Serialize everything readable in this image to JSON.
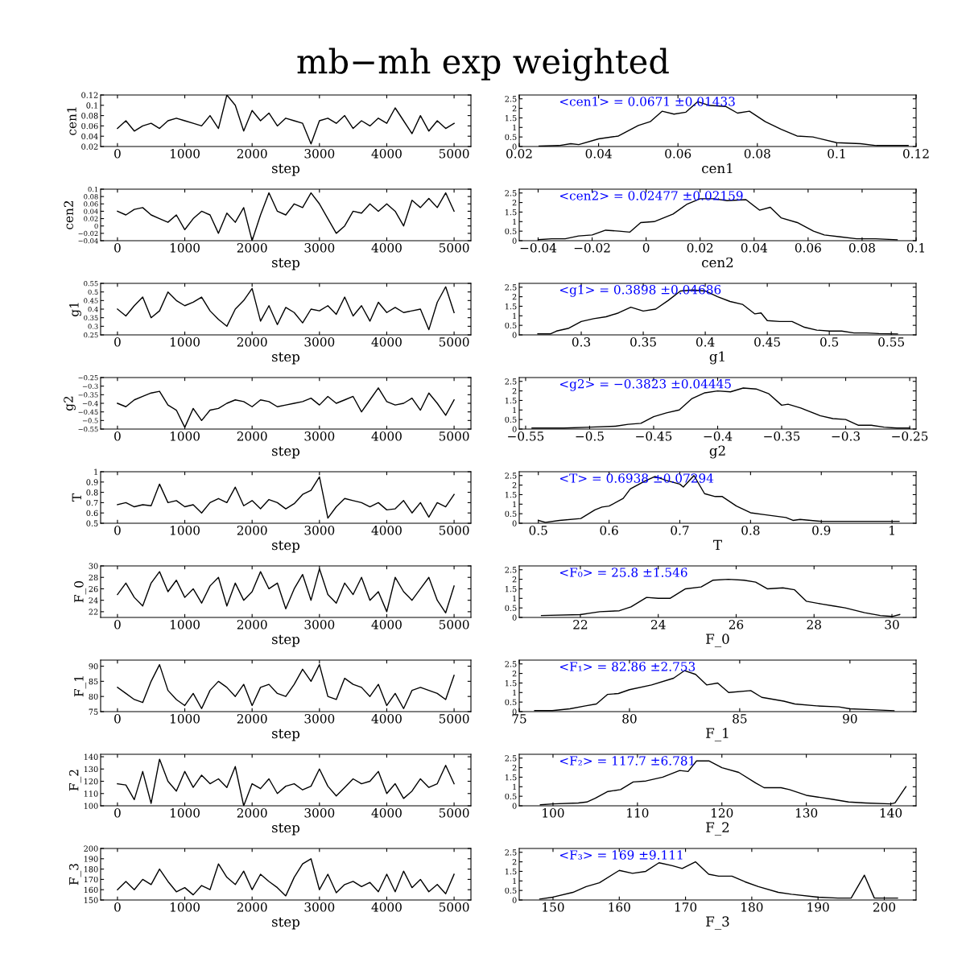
{
  "chart_data": [
    {
      "type": "line",
      "title": "mb−mh exp weighted",
      "xlabel": "step",
      "ylabel": "cen1",
      "x": [
        0,
        125,
        250,
        375,
        500,
        625,
        750,
        875,
        1000,
        1125,
        1250,
        1375,
        1500,
        1625,
        1750,
        1875,
        2000,
        2125,
        2250,
        2375,
        2500,
        2625,
        2750,
        2875,
        3000,
        3125,
        3250,
        3375,
        3500,
        3625,
        3750,
        3875,
        4000,
        4125,
        4250,
        4375,
        4500,
        4625,
        4750,
        4875,
        5000
      ],
      "series": [
        {
          "color": "#000000",
          "values": [
            0.055,
            0.07,
            0.05,
            0.06,
            0.065,
            0.055,
            0.07,
            0.075,
            0.07,
            0.065,
            0.06,
            0.08,
            0.055,
            0.12,
            0.1,
            0.05,
            0.09,
            0.07,
            0.085,
            0.06,
            0.075,
            0.07,
            0.065,
            0.025,
            0.07,
            0.075,
            0.065,
            0.08,
            0.055,
            0.07,
            0.06,
            0.075,
            0.065,
            0.095,
            0.07,
            0.045,
            0.08,
            0.05,
            0.07,
            0.055,
            0.065
          ]
        }
      ],
      "xlim": [
        -250,
        5250
      ],
      "xticks": [
        0,
        1000,
        2000,
        3000,
        4000,
        5000
      ],
      "ylim": [
        0.02,
        0.12
      ],
      "yticks": [
        0.02,
        0.04,
        0.06,
        0.08,
        0.1,
        0.12
      ]
    },
    {
      "type": "line",
      "xlabel": "cen1",
      "annotations": [
        "<cen1> = 0.0671 ±0.01433"
      ],
      "x": [
        0.025,
        0.03,
        0.033,
        0.035,
        0.04,
        0.045,
        0.05,
        0.053,
        0.056,
        0.059,
        0.062,
        0.065,
        0.068,
        0.072,
        0.075,
        0.078,
        0.082,
        0.086,
        0.09,
        0.094,
        0.1,
        0.106,
        0.11,
        0.118
      ],
      "series": [
        {
          "color": "#000000",
          "values": [
            0.02,
            0.05,
            0.15,
            0.1,
            0.4,
            0.55,
            1.1,
            1.3,
            1.85,
            1.7,
            1.8,
            2.35,
            2.15,
            2.1,
            1.75,
            1.85,
            1.3,
            0.9,
            0.55,
            0.5,
            0.2,
            0.15,
            0.05,
            0.05
          ]
        }
      ],
      "xlim": [
        0.02,
        0.12
      ],
      "xticks": [
        0.02,
        0.04,
        0.06,
        0.08,
        0.1,
        0.12
      ],
      "ylim": [
        0,
        2.7
      ],
      "yticks": [
        0,
        0.5,
        1,
        1.5,
        2,
        2.5
      ]
    },
    {
      "type": "line",
      "xlabel": "step",
      "ylabel": "cen2",
      "x": [
        0,
        125,
        250,
        375,
        500,
        625,
        750,
        875,
        1000,
        1125,
        1250,
        1375,
        1500,
        1625,
        1750,
        1875,
        2000,
        2125,
        2250,
        2375,
        2500,
        2625,
        2750,
        2875,
        3000,
        3125,
        3250,
        3375,
        3500,
        3625,
        3750,
        3875,
        4000,
        4125,
        4250,
        4375,
        4500,
        4625,
        4750,
        4875,
        5000
      ],
      "series": [
        {
          "color": "#000000",
          "values": [
            0.04,
            0.03,
            0.045,
            0.05,
            0.03,
            0.02,
            0.01,
            0.03,
            -0.01,
            0.02,
            0.04,
            0.03,
            -0.02,
            0.035,
            0.01,
            0.05,
            -0.04,
            0.03,
            0.09,
            0.04,
            0.03,
            0.06,
            0.05,
            0.09,
            0.06,
            0.02,
            -0.02,
            0.0,
            0.04,
            0.035,
            0.06,
            0.04,
            0.06,
            0.04,
            0.0,
            0.07,
            0.05,
            0.075,
            0.05,
            0.09,
            0.04
          ]
        }
      ],
      "xlim": [
        -250,
        5250
      ],
      "xticks": [
        0,
        1000,
        2000,
        3000,
        4000,
        5000
      ],
      "ylim": [
        -0.04,
        0.1
      ],
      "yticks": [
        {
          "value": -0.04,
          "label": "−0.04"
        },
        {
          "value": -0.02,
          "label": "−0.02"
        },
        0,
        0.02,
        0.04,
        0.06,
        0.08,
        0.1
      ]
    },
    {
      "type": "line",
      "xlabel": "cen2",
      "annotations": [
        "<cen2> = 0.02477 ±0.02159"
      ],
      "x": [
        -0.04,
        -0.035,
        -0.03,
        -0.025,
        -0.02,
        -0.015,
        -0.01,
        -0.006,
        -0.002,
        0.003,
        0.01,
        0.015,
        0.02,
        0.025,
        0.03,
        0.037,
        0.042,
        0.046,
        0.05,
        0.056,
        0.062,
        0.066,
        0.072,
        0.078,
        0.085,
        0.093
      ],
      "series": [
        {
          "color": "#000000",
          "values": [
            0.05,
            0.1,
            0.1,
            0.25,
            0.3,
            0.55,
            0.5,
            0.45,
            0.95,
            1.0,
            1.4,
            1.9,
            2.2,
            2.2,
            2.1,
            2.15,
            1.6,
            1.75,
            1.2,
            0.95,
            0.5,
            0.3,
            0.2,
            0.1,
            0.1,
            0.05
          ]
        }
      ],
      "xlim": [
        -0.047,
        0.1
      ],
      "xticks": [
        {
          "value": -0.04,
          "label": "−0.04"
        },
        {
          "value": -0.02,
          "label": "−0.02"
        },
        0,
        0.02,
        0.04,
        0.06,
        0.08,
        0.1
      ],
      "ylim": [
        0,
        2.7
      ],
      "yticks": [
        0,
        0.5,
        1,
        1.5,
        2,
        2.5
      ]
    },
    {
      "type": "line",
      "xlabel": "step",
      "ylabel": "g1",
      "x": [
        0,
        125,
        250,
        375,
        500,
        625,
        750,
        875,
        1000,
        1125,
        1250,
        1375,
        1500,
        1625,
        1750,
        1875,
        2000,
        2125,
        2250,
        2375,
        2500,
        2625,
        2750,
        2875,
        3000,
        3125,
        3250,
        3375,
        3500,
        3625,
        3750,
        3875,
        4000,
        4125,
        4250,
        4375,
        4500,
        4625,
        4750,
        4875,
        5000
      ],
      "series": [
        {
          "color": "#000000",
          "values": [
            0.4,
            0.36,
            0.42,
            0.47,
            0.35,
            0.39,
            0.5,
            0.45,
            0.42,
            0.44,
            0.47,
            0.39,
            0.34,
            0.3,
            0.4,
            0.45,
            0.52,
            0.33,
            0.42,
            0.31,
            0.41,
            0.38,
            0.32,
            0.4,
            0.39,
            0.42,
            0.37,
            0.47,
            0.36,
            0.42,
            0.33,
            0.44,
            0.38,
            0.41,
            0.38,
            0.39,
            0.4,
            0.28,
            0.44,
            0.53,
            0.38
          ]
        }
      ],
      "xlim": [
        -250,
        5250
      ],
      "xticks": [
        0,
        1000,
        2000,
        3000,
        4000,
        5000
      ],
      "ylim": [
        0.25,
        0.55
      ],
      "yticks": [
        0.25,
        0.3,
        0.35,
        0.4,
        0.45,
        0.5,
        0.55
      ]
    },
    {
      "type": "line",
      "xlabel": "g1",
      "annotations": [
        "<g1> = 0.3898 ±0.04686"
      ],
      "x": [
        0.265,
        0.275,
        0.28,
        0.29,
        0.3,
        0.31,
        0.32,
        0.33,
        0.34,
        0.35,
        0.36,
        0.37,
        0.38,
        0.39,
        0.4,
        0.41,
        0.42,
        0.43,
        0.44,
        0.445,
        0.45,
        0.46,
        0.47,
        0.48,
        0.49,
        0.5,
        0.51,
        0.52,
        0.53,
        0.54,
        0.555
      ],
      "series": [
        {
          "color": "#000000",
          "values": [
            0.05,
            0.05,
            0.2,
            0.35,
            0.7,
            0.85,
            0.95,
            1.15,
            1.45,
            1.25,
            1.35,
            1.8,
            2.3,
            2.35,
            2.3,
            2.0,
            1.75,
            1.6,
            1.1,
            1.15,
            0.75,
            0.7,
            0.7,
            0.4,
            0.25,
            0.2,
            0.2,
            0.1,
            0.1,
            0.07,
            0.05
          ]
        }
      ],
      "xlim": [
        0.25,
        0.57
      ],
      "xticks": [
        0.3,
        0.35,
        0.4,
        0.45,
        0.5,
        0.55
      ],
      "ylim": [
        0,
        2.7
      ],
      "yticks": [
        0,
        0.5,
        1,
        1.5,
        2,
        2.5
      ]
    },
    {
      "type": "line",
      "xlabel": "step",
      "ylabel": "g2",
      "x": [
        0,
        125,
        250,
        375,
        500,
        625,
        750,
        875,
        1000,
        1125,
        1250,
        1375,
        1500,
        1625,
        1750,
        1875,
        2000,
        2125,
        2250,
        2375,
        2500,
        2625,
        2750,
        2875,
        3000,
        3125,
        3250,
        3375,
        3500,
        3625,
        3750,
        3875,
        4000,
        4125,
        4250,
        4375,
        4500,
        4625,
        4750,
        4875,
        5000
      ],
      "series": [
        {
          "color": "#000000",
          "values": [
            -0.4,
            -0.42,
            -0.38,
            -0.36,
            -0.34,
            -0.33,
            -0.41,
            -0.44,
            -0.54,
            -0.43,
            -0.5,
            -0.44,
            -0.43,
            -0.4,
            -0.38,
            -0.39,
            -0.42,
            -0.38,
            -0.39,
            -0.42,
            -0.41,
            -0.4,
            -0.39,
            -0.37,
            -0.41,
            -0.36,
            -0.4,
            -0.38,
            -0.36,
            -0.45,
            -0.38,
            -0.31,
            -0.39,
            -0.41,
            -0.4,
            -0.37,
            -0.44,
            -0.34,
            -0.4,
            -0.47,
            -0.38
          ]
        }
      ],
      "xlim": [
        -250,
        5250
      ],
      "xticks": [
        0,
        1000,
        2000,
        3000,
        4000,
        5000
      ],
      "ylim": [
        -0.55,
        -0.25
      ],
      "yticks": [
        {
          "value": -0.55,
          "label": "−0.55"
        },
        {
          "value": -0.5,
          "label": "−0.5"
        },
        {
          "value": -0.45,
          "label": "−0.45"
        },
        {
          "value": -0.4,
          "label": "−0.4"
        },
        {
          "value": -0.35,
          "label": "−0.35"
        },
        {
          "value": -0.3,
          "label": "−0.3"
        },
        {
          "value": -0.25,
          "label": "−0.25"
        }
      ]
    },
    {
      "type": "line",
      "xlabel": "g2",
      "annotations": [
        "<g2> = −0.3823 ±0.04445"
      ],
      "x": [
        -0.545,
        -0.52,
        -0.5,
        -0.48,
        -0.47,
        -0.46,
        -0.45,
        -0.44,
        -0.43,
        -0.42,
        -0.41,
        -0.4,
        -0.39,
        -0.38,
        -0.37,
        -0.36,
        -0.35,
        -0.345,
        -0.335,
        -0.32,
        -0.31,
        -0.3,
        -0.29,
        -0.28,
        -0.27,
        -0.26,
        -0.25
      ],
      "series": [
        {
          "color": "#000000",
          "values": [
            0.05,
            0.05,
            0.1,
            0.15,
            0.25,
            0.3,
            0.65,
            0.85,
            1.0,
            1.6,
            1.9,
            2.0,
            1.95,
            2.15,
            2.1,
            1.85,
            1.25,
            1.3,
            1.1,
            0.7,
            0.55,
            0.5,
            0.2,
            0.2,
            0.1,
            0.05,
            0.05
          ]
        }
      ],
      "xlim": [
        -0.555,
        -0.245
      ],
      "xticks": [
        {
          "value": -0.55,
          "label": "−0.55"
        },
        {
          "value": -0.5,
          "label": "−0.5"
        },
        {
          "value": -0.45,
          "label": "−0.45"
        },
        {
          "value": -0.4,
          "label": "−0.4"
        },
        {
          "value": -0.35,
          "label": "−0.35"
        },
        {
          "value": -0.3,
          "label": "−0.3"
        },
        {
          "value": -0.25,
          "label": "−0.25"
        }
      ],
      "ylim": [
        0,
        2.7
      ],
      "yticks": [
        0,
        0.5,
        1,
        1.5,
        2,
        2.5
      ]
    },
    {
      "type": "line",
      "xlabel": "step",
      "ylabel": "T",
      "x": [
        0,
        125,
        250,
        375,
        500,
        625,
        750,
        875,
        1000,
        1125,
        1250,
        1375,
        1500,
        1625,
        1750,
        1875,
        2000,
        2125,
        2250,
        2375,
        2500,
        2625,
        2750,
        2875,
        3000,
        3125,
        3250,
        3375,
        3500,
        3625,
        3750,
        3875,
        4000,
        4125,
        4250,
        4375,
        4500,
        4625,
        4750,
        4875,
        5000
      ],
      "series": [
        {
          "color": "#000000",
          "values": [
            0.68,
            0.7,
            0.66,
            0.68,
            0.67,
            0.88,
            0.7,
            0.72,
            0.66,
            0.68,
            0.6,
            0.7,
            0.74,
            0.7,
            0.85,
            0.67,
            0.72,
            0.64,
            0.73,
            0.7,
            0.64,
            0.69,
            0.78,
            0.82,
            0.95,
            0.55,
            0.66,
            0.74,
            0.72,
            0.7,
            0.66,
            0.7,
            0.63,
            0.64,
            0.72,
            0.6,
            0.7,
            0.56,
            0.7,
            0.66,
            0.78
          ]
        }
      ],
      "xlim": [
        -250,
        5250
      ],
      "xticks": [
        0,
        1000,
        2000,
        3000,
        4000,
        5000
      ],
      "ylim": [
        0.5,
        1
      ],
      "yticks": [
        0.5,
        0.6,
        0.7,
        0.8,
        0.9,
        1
      ]
    },
    {
      "type": "line",
      "xlabel": "T",
      "annotations": [
        "<T> = 0.6938 ±0.07294"
      ],
      "x": [
        0.5,
        0.51,
        0.53,
        0.56,
        0.58,
        0.59,
        0.6,
        0.62,
        0.63,
        0.65,
        0.665,
        0.68,
        0.7,
        0.705,
        0.72,
        0.735,
        0.75,
        0.76,
        0.78,
        0.8,
        0.82,
        0.85,
        0.86,
        0.87,
        0.9,
        0.95,
        0.98,
        1.01
      ],
      "series": [
        {
          "color": "#000000",
          "values": [
            0.15,
            0.05,
            0.15,
            0.25,
            0.7,
            0.85,
            0.9,
            1.3,
            1.8,
            2.2,
            2.45,
            2.25,
            2.05,
            1.9,
            2.5,
            1.55,
            1.4,
            1.4,
            0.9,
            0.55,
            0.45,
            0.3,
            0.15,
            0.2,
            0.1,
            0.1,
            0.1,
            0.1
          ]
        }
      ],
      "xlim": [
        0.473,
        1.034
      ],
      "xticks": [
        0.5,
        0.6,
        0.7,
        0.8,
        0.9,
        1
      ],
      "ylim": [
        0,
        2.7
      ],
      "yticks": [
        0,
        0.5,
        1,
        1.5,
        2,
        2.5
      ]
    },
    {
      "type": "line",
      "xlabel": "step",
      "ylabel": "F_0",
      "x": [
        0,
        125,
        250,
        375,
        500,
        625,
        750,
        875,
        1000,
        1125,
        1250,
        1375,
        1500,
        1625,
        1750,
        1875,
        2000,
        2125,
        2250,
        2375,
        2500,
        2625,
        2750,
        2875,
        3000,
        3125,
        3250,
        3375,
        3500,
        3625,
        3750,
        3875,
        4000,
        4125,
        4250,
        4375,
        4500,
        4625,
        4750,
        4875,
        5000
      ],
      "series": [
        {
          "color": "#000000",
          "values": [
            25,
            27,
            24.5,
            23,
            27,
            29,
            25.5,
            27.5,
            24.5,
            26,
            23.5,
            26.5,
            28,
            23,
            27,
            24,
            25.5,
            29,
            26,
            27,
            22.5,
            26,
            28.5,
            24,
            29.5,
            25,
            23.5,
            27,
            25,
            28,
            24,
            25.5,
            22,
            28,
            25.5,
            24,
            26,
            28,
            24,
            21.8,
            26.5
          ]
        }
      ],
      "xlim": [
        -250,
        5250
      ],
      "xticks": [
        0,
        1000,
        2000,
        3000,
        4000,
        5000
      ],
      "ylim": [
        21,
        30
      ],
      "yticks": [
        22,
        24,
        26,
        28,
        30
      ]
    },
    {
      "type": "line",
      "xlabel": "F_0",
      "annotations": [
        "<F₀> = 25.8 ±1.546"
      ],
      "x": [
        21,
        22,
        22.5,
        23,
        23.3,
        23.7,
        24,
        24.3,
        24.7,
        25.1,
        25.4,
        25.8,
        26.2,
        26.5,
        26.8,
        27.2,
        27.5,
        27.8,
        28.2,
        28.5,
        28.8,
        29.3,
        29.7,
        30.0,
        30.2
      ],
      "series": [
        {
          "color": "#000000",
          "values": [
            0.1,
            0.15,
            0.3,
            0.35,
            0.55,
            1.05,
            1.0,
            1.0,
            1.5,
            1.6,
            1.95,
            2.0,
            1.95,
            1.85,
            1.5,
            1.55,
            1.45,
            0.85,
            0.7,
            0.6,
            0.5,
            0.25,
            0.1,
            0.05,
            0.15
          ]
        }
      ],
      "xlim": [
        20.43,
        30.62
      ],
      "xticks": [
        22,
        24,
        26,
        28,
        30
      ],
      "ylim": [
        0,
        2.7
      ],
      "yticks": [
        0,
        0.5,
        1,
        1.5,
        2,
        2.5
      ]
    },
    {
      "type": "line",
      "xlabel": "step",
      "ylabel": "F_1",
      "x": [
        0,
        125,
        250,
        375,
        500,
        625,
        750,
        875,
        1000,
        1125,
        1250,
        1375,
        1500,
        1625,
        1750,
        1875,
        2000,
        2125,
        2250,
        2375,
        2500,
        2625,
        2750,
        2875,
        3000,
        3125,
        3250,
        3375,
        3500,
        3625,
        3750,
        3875,
        4000,
        4125,
        4250,
        4375,
        4500,
        4625,
        4750,
        4875,
        5000
      ],
      "series": [
        {
          "color": "#000000",
          "values": [
            83,
            81,
            79,
            78,
            85,
            90.5,
            82,
            79,
            77,
            81,
            76,
            82,
            85,
            83,
            80,
            84,
            77,
            83,
            84,
            81,
            80,
            84,
            89,
            85,
            90.5,
            80,
            79,
            86,
            84,
            83,
            80,
            84,
            77,
            81,
            76,
            82,
            83,
            82,
            81,
            79,
            87
          ]
        }
      ],
      "xlim": [
        -250,
        5250
      ],
      "xticks": [
        0,
        1000,
        2000,
        3000,
        4000,
        5000
      ],
      "ylim": [
        75,
        92
      ],
      "yticks": [
        75,
        80,
        85,
        90
      ]
    },
    {
      "type": "line",
      "xlabel": "F_1",
      "annotations": [
        "<F₁> = 82.86 ±2.753"
      ],
      "x": [
        75.7,
        76.5,
        77.3,
        78,
        78.5,
        79,
        79.5,
        80,
        81,
        82,
        82.5,
        83,
        83.5,
        84,
        84.5,
        85.5,
        86,
        87,
        87.5,
        88.5,
        89.5,
        90,
        91,
        92
      ],
      "series": [
        {
          "color": "#000000",
          "values": [
            0.05,
            0.05,
            0.15,
            0.3,
            0.4,
            0.9,
            0.95,
            1.15,
            1.4,
            1.75,
            2.15,
            1.95,
            1.4,
            1.5,
            1.0,
            1.1,
            0.75,
            0.55,
            0.4,
            0.3,
            0.25,
            0.15,
            0.1,
            0.05
          ]
        }
      ],
      "xlim": [
        75,
        93
      ],
      "xticks": [
        75,
        80,
        85,
        90
      ],
      "ylim": [
        0,
        2.7
      ],
      "yticks": [
        0,
        0.5,
        1,
        1.5,
        2,
        2.5
      ]
    },
    {
      "type": "line",
      "xlabel": "step",
      "ylabel": "F_2",
      "x": [
        0,
        125,
        250,
        375,
        500,
        625,
        750,
        875,
        1000,
        1125,
        1250,
        1375,
        1500,
        1625,
        1750,
        1875,
        2000,
        2125,
        2250,
        2375,
        2500,
        2625,
        2750,
        2875,
        3000,
        3125,
        3250,
        3375,
        3500,
        3625,
        3750,
        3875,
        4000,
        4125,
        4250,
        4375,
        4500,
        4625,
        4750,
        4875,
        5000
      ],
      "series": [
        {
          "color": "#000000",
          "values": [
            118,
            117,
            105,
            128,
            102,
            138,
            120,
            112,
            128,
            115,
            125,
            118,
            122,
            115,
            132,
            100,
            118,
            114,
            122,
            110,
            116,
            118,
            113,
            116,
            130,
            116,
            108,
            115,
            122,
            118,
            120,
            128,
            110,
            118,
            106,
            112,
            122,
            115,
            118,
            133,
            118
          ]
        }
      ],
      "xlim": [
        -250,
        5250
      ],
      "xticks": [
        0,
        1000,
        2000,
        3000,
        4000,
        5000
      ],
      "ylim": [
        100,
        142
      ],
      "yticks": [
        100,
        110,
        120,
        130,
        140
      ]
    },
    {
      "type": "line",
      "xlabel": "F_2",
      "annotations": [
        "<F₂> = 117.7 ±6.781"
      ],
      "x": [
        98.5,
        100,
        103,
        104,
        105,
        106.5,
        108,
        109.5,
        111,
        113,
        115,
        116,
        117,
        118.5,
        120,
        122,
        124,
        125,
        127,
        128,
        130,
        133,
        135,
        137,
        140,
        140.5,
        141.8
      ],
      "series": [
        {
          "color": "#000000",
          "values": [
            0.05,
            0.1,
            0.15,
            0.2,
            0.4,
            0.75,
            0.85,
            1.25,
            1.3,
            1.5,
            1.85,
            1.8,
            2.35,
            2.35,
            2.0,
            1.75,
            1.2,
            0.95,
            0.95,
            0.85,
            0.55,
            0.35,
            0.2,
            0.15,
            0.1,
            0.15,
            1.0
          ]
        }
      ],
      "xlim": [
        96,
        143
      ],
      "xticks": [
        100,
        110,
        120,
        130,
        140
      ],
      "ylim": [
        0,
        2.7
      ],
      "yticks": [
        0,
        0.5,
        1,
        1.5,
        2,
        2.5
      ]
    },
    {
      "type": "line",
      "xlabel": "step",
      "ylabel": "F_3",
      "x": [
        0,
        125,
        250,
        375,
        500,
        625,
        750,
        875,
        1000,
        1125,
        1250,
        1375,
        1500,
        1625,
        1750,
        1875,
        2000,
        2125,
        2250,
        2375,
        2500,
        2625,
        2750,
        2875,
        3000,
        3125,
        3250,
        3375,
        3500,
        3625,
        3750,
        3875,
        4000,
        4125,
        4250,
        4375,
        4500,
        4625,
        4750,
        4875,
        5000
      ],
      "series": [
        {
          "color": "#000000",
          "values": [
            160,
            168,
            160,
            170,
            165,
            180,
            168,
            158,
            162,
            155,
            164,
            160,
            185,
            172,
            165,
            178,
            160,
            175,
            168,
            162,
            154,
            172,
            185,
            190,
            160,
            175,
            157,
            165,
            168,
            163,
            167,
            158,
            175,
            158,
            178,
            162,
            170,
            158,
            165,
            156,
            175
          ]
        }
      ],
      "xlim": [
        -250,
        5250
      ],
      "xticks": [
        0,
        1000,
        2000,
        3000,
        4000,
        5000
      ],
      "ylim": [
        150,
        200
      ],
      "yticks": [
        150,
        160,
        170,
        180,
        190,
        200
      ]
    },
    {
      "type": "line",
      "xlabel": "F_3",
      "annotations": [
        "<F₃> = 169 ±9.111"
      ],
      "x": [
        148,
        150,
        153,
        155,
        157,
        160,
        162,
        164,
        166,
        168,
        169.5,
        171.5,
        173.5,
        175,
        177,
        179,
        181,
        184,
        186,
        190,
        193,
        195,
        197,
        198.5,
        202
      ],
      "series": [
        {
          "color": "#000000",
          "values": [
            0.05,
            0.15,
            0.4,
            0.7,
            0.9,
            1.55,
            1.4,
            1.5,
            1.95,
            1.8,
            1.65,
            2.0,
            1.35,
            1.25,
            1.25,
            0.95,
            0.7,
            0.4,
            0.3,
            0.15,
            0.1,
            0.1,
            1.3,
            0.1,
            0.1
          ]
        }
      ],
      "xlim": [
        144.9,
        204.8
      ],
      "xticks": [
        150,
        160,
        170,
        180,
        190,
        200
      ],
      "ylim": [
        0,
        2.7
      ],
      "yticks": [
        0,
        0.5,
        1,
        1.5,
        2,
        2.5
      ]
    }
  ]
}
